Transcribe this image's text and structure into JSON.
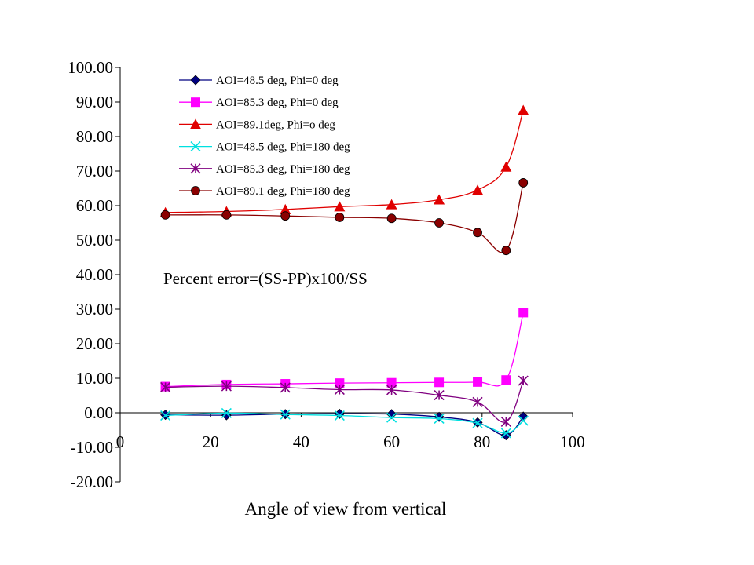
{
  "chart_data": {
    "type": "line",
    "title": "",
    "xlabel": "Angle of view from vertical",
    "ylabel": "",
    "xlim": [
      0,
      100
    ],
    "ylim": [
      -20,
      100
    ],
    "x_ticks": [
      "0",
      "20",
      "40",
      "60",
      "80",
      "100"
    ],
    "y_ticks": [
      "100.00",
      "90.00",
      "80.00",
      "70.00",
      "60.00",
      "50.00",
      "40.00",
      "30.00",
      "20.00",
      "10.00",
      "0.00",
      "-10.00",
      "-20.00"
    ],
    "grid": false,
    "legend_position": "top-left inside",
    "annotation": "Percent error=(SS-PP)x100/SS",
    "x": [
      10,
      23.5,
      36.5,
      48.5,
      60,
      70.5,
      79,
      85.3,
      89.1
    ],
    "series": [
      {
        "name": "AOI=48.5 deg, Phi=0 deg",
        "color": "#000080",
        "marker": "diamond",
        "values": [
          -0.6,
          -0.7,
          -0.4,
          -0.3,
          -0.4,
          -1.2,
          -2.8,
          -6.5,
          -1.1
        ]
      },
      {
        "name": "AOI=85.3 deg, Phi=0 deg",
        "color": "#ff00ff",
        "marker": "square",
        "values": [
          7.6,
          8.2,
          8.4,
          8.6,
          8.7,
          8.8,
          8.9,
          9.5,
          29.0
        ]
      },
      {
        "name": "AOI=89.1deg, Phi=o deg",
        "color": "#e00000",
        "marker": "triangle",
        "values": [
          58.0,
          58.3,
          58.9,
          59.7,
          60.3,
          61.7,
          64.5,
          71.2,
          87.6
        ]
      },
      {
        "name": "AOI=48.5 deg, Phi=180 deg",
        "color": "#00e0e0",
        "marker": "x",
        "values": [
          -0.8,
          -0.1,
          -0.5,
          -0.8,
          -1.4,
          -1.7,
          -3.0,
          -5.9,
          -2.3
        ]
      },
      {
        "name": "AOI=85.3 deg, Phi=180 deg",
        "color": "#800080",
        "marker": "star",
        "values": [
          7.4,
          7.7,
          7.3,
          6.7,
          6.6,
          5.1,
          3.1,
          -2.6,
          9.3
        ]
      },
      {
        "name": "AOI=89.1 deg, Phi=180 deg",
        "color": "#8b0000",
        "marker": "circle",
        "values": [
          57.3,
          57.3,
          57.0,
          56.6,
          56.3,
          55.0,
          52.2,
          47.0,
          66.6
        ]
      }
    ]
  }
}
